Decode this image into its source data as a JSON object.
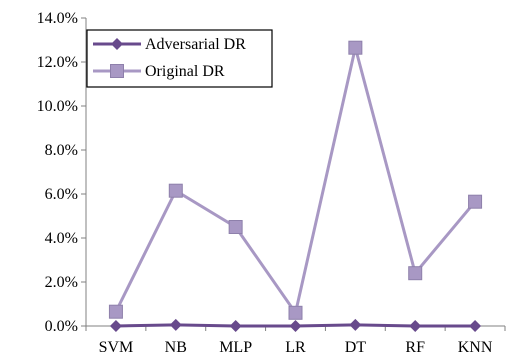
{
  "chart_data": {
    "type": "line",
    "categories": [
      "SVM",
      "NB",
      "MLP",
      "LR",
      "DT",
      "RF",
      "KNN"
    ],
    "series": [
      {
        "name": "Adversarial DR",
        "color": "#684a8c",
        "marker": "diamond",
        "values": [
          0.0,
          0.05,
          0.0,
          0.0,
          0.05,
          0.0,
          0.0
        ]
      },
      {
        "name": "Original DR",
        "color": "#a898c4",
        "marker": "square",
        "values": [
          0.65,
          6.15,
          4.5,
          0.6,
          12.65,
          2.4,
          5.65
        ]
      }
    ],
    "ylim": [
      0,
      14
    ],
    "yticks": [
      0,
      2,
      4,
      6,
      8,
      10,
      12,
      14
    ],
    "ytick_labels": [
      "0.0%",
      "2.0%",
      "4.0%",
      "6.0%",
      "8.0%",
      "10.0%",
      "12.0%",
      "14.0%"
    ],
    "grid": false,
    "legend_position": "top-left"
  }
}
